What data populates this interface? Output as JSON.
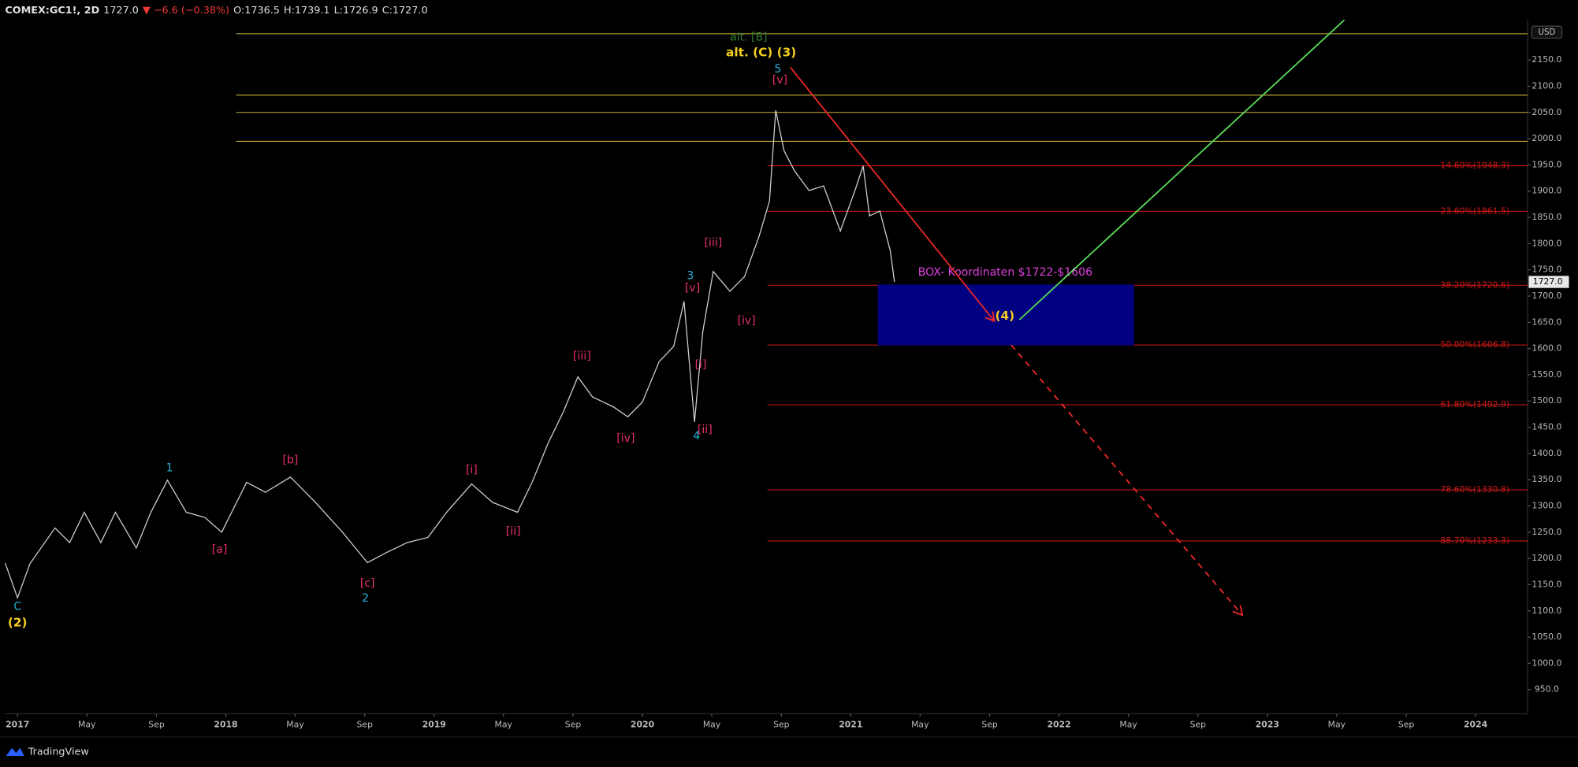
{
  "header": {
    "symbol": "COMEX:GC1!, 2D",
    "last": "1727.0",
    "change": "▼ −6.6 (−0.38%)",
    "ohlc": [
      "O:1736.5",
      "H:1739.1",
      "L:1726.9",
      "C:1727.0"
    ]
  },
  "footer": {
    "brand": "TradingView"
  },
  "chart_data": {
    "type": "line",
    "currency": "USD",
    "color": "#d0d0d0",
    "x": [
      2016.94,
      2017.0,
      2017.06,
      2017.18,
      2017.25,
      2017.32,
      2017.4,
      2017.47,
      2017.57,
      2017.64,
      2017.72,
      2017.81,
      2017.9,
      2017.98,
      2018.1,
      2018.19,
      2018.31,
      2018.43,
      2018.56,
      2018.68,
      2018.77,
      2018.87,
      2018.97,
      2019.06,
      2019.18,
      2019.28,
      2019.4,
      2019.47,
      2019.55,
      2019.62,
      2019.69,
      2019.76,
      2019.86,
      2019.93,
      2020.0,
      2020.08,
      2020.15,
      2020.2,
      2020.25,
      2020.29,
      2020.34,
      2020.42,
      2020.49,
      2020.56,
      2020.61,
      2020.64,
      2020.68,
      2020.73,
      2020.8,
      2020.87,
      2020.95,
      2021.02,
      2021.06,
      2021.09,
      2021.14,
      2021.19,
      2021.21
    ],
    "values": [
      1192,
      1125,
      1190,
      1258,
      1230,
      1288,
      1230,
      1288,
      1220,
      1288,
      1349,
      1288,
      1278,
      1250,
      1345,
      1326,
      1355,
      1307,
      1250,
      1192,
      1211,
      1230,
      1240,
      1288,
      1342,
      1307,
      1288,
      1345,
      1422,
      1479,
      1546,
      1508,
      1489,
      1470,
      1498,
      1575,
      1604,
      1690,
      1460,
      1633,
      1747,
      1709,
      1737,
      1814,
      1881,
      2054,
      1977,
      1939,
      1901,
      1910,
      1824,
      1901,
      1948,
      1853,
      1862,
      1786,
      1727
    ],
    "xlim": [
      2016.94,
      2024.25
    ],
    "ylim": [
      904,
      2226
    ],
    "xticks": [
      2017,
      {
        "value": 2017.333,
        "label": "May"
      },
      {
        "value": 2017.667,
        "label": "Sep"
      },
      2018,
      {
        "value": 2018.333,
        "label": "May"
      },
      {
        "value": 2018.667,
        "label": "Sep"
      },
      2019,
      {
        "value": 2019.333,
        "label": "May"
      },
      {
        "value": 2019.667,
        "label": "Sep"
      },
      2020,
      {
        "value": 2020.333,
        "label": "May"
      },
      {
        "value": 2020.667,
        "label": "Sep"
      },
      2021,
      {
        "value": 2021.333,
        "label": "May"
      },
      {
        "value": 2021.667,
        "label": "Sep"
      },
      2022,
      {
        "value": 2022.333,
        "label": "May"
      },
      {
        "value": 2022.667,
        "label": "Sep"
      },
      2023,
      {
        "value": 2023.333,
        "label": "May"
      },
      {
        "value": 2023.667,
        "label": "Sep"
      },
      2024
    ],
    "yticks": [
      {
        "value": 950,
        "label": "950.0"
      },
      {
        "value": 1000,
        "label": "1000.0"
      },
      {
        "value": 1050,
        "label": "1050.0"
      },
      {
        "value": 1100,
        "label": "1100.0"
      },
      {
        "value": 1150,
        "label": "1150.0"
      },
      {
        "value": 1200,
        "label": "1200.0"
      },
      {
        "value": 1250,
        "label": "1250.0"
      },
      {
        "value": 1300,
        "label": "1300.0"
      },
      {
        "value": 1350,
        "label": "1350.0"
      },
      {
        "value": 1400,
        "label": "1400.0"
      },
      {
        "value": 1450,
        "label": "1450.0"
      },
      {
        "value": 1500,
        "label": "1500.0"
      },
      {
        "value": 1550,
        "label": "1550.0"
      },
      {
        "value": 1600,
        "label": "1600.0"
      },
      {
        "value": 1650,
        "label": "1650.0"
      },
      {
        "value": 1700,
        "label": "1700.0"
      },
      {
        "value": 1750,
        "label": "1750.0"
      },
      {
        "value": 1800,
        "label": "1800.0"
      },
      {
        "value": 1850,
        "label": "1850.0"
      },
      {
        "value": 1900,
        "label": "1900.0"
      },
      {
        "value": 1950,
        "label": "1950.0"
      },
      {
        "value": 2000,
        "label": "2000.0"
      },
      {
        "value": 2050,
        "label": "2050.0"
      },
      {
        "value": 2100,
        "label": "2100.0"
      },
      {
        "value": 2150,
        "label": "2150.0"
      }
    ],
    "last_price": {
      "value": 1727.0,
      "label": "1727.0"
    },
    "hlines": {
      "color": "#c9b23a",
      "x_start": 2018.05,
      "values": [
        2200,
        2083,
        2050,
        1995
      ]
    },
    "fib_levels": {
      "color": "#d01818",
      "x_start": 2020.6,
      "levels": [
        {
          "value": 1948.3,
          "label": "14.60%(1948.3)"
        },
        {
          "value": 1861.5,
          "label": "23.60%(1861.5)"
        },
        {
          "value": 1720.6,
          "label": "38.20%(1720.6)"
        },
        {
          "value": 1606.8,
          "label": "50.00%(1606.8)"
        },
        {
          "value": 1492.9,
          "label": "61.80%(1492.9)"
        },
        {
          "value": 1330.8,
          "label": "78.60%(1330.8)"
        },
        {
          "value": 1233.3,
          "label": "88.70%(1233.3)"
        }
      ]
    },
    "box": {
      "x": [
        2021.13,
        2022.36
      ],
      "y": [
        1606,
        1722
      ],
      "color": "#000080",
      "label": "BOX- Koordinaten $1722-$1606",
      "label_color": "#e040e0"
    },
    "arrows": [
      {
        "x": [
          2020.71,
          2021.69
        ],
        "y": [
          2136,
          1652
        ],
        "color": "#f02828",
        "dashed": false,
        "head": true
      },
      {
        "x": [
          2021.77,
          2022.88
        ],
        "y": [
          1607,
          1092
        ],
        "color": "#f02828",
        "dashed": true,
        "head": true
      },
      {
        "x": [
          2021.81,
          2023.38
        ],
        "y": [
          1655,
          2230
        ],
        "color": "#5ae05a",
        "dashed": false,
        "head": false
      }
    ],
    "annotations": [
      {
        "text": "1",
        "x": 2017.73,
        "y": 1372,
        "color": "#26b0d8"
      },
      {
        "text": "[a]",
        "x": 2017.97,
        "y": 1217,
        "color": "#e8306a"
      },
      {
        "text": "[b]",
        "x": 2018.31,
        "y": 1387,
        "color": "#e8306a"
      },
      {
        "text": "[c]",
        "x": 2018.68,
        "y": 1152,
        "color": "#e8306a"
      },
      {
        "text": "2",
        "x": 2018.67,
        "y": 1124,
        "color": "#26b0d8"
      },
      {
        "text": "[i]",
        "x": 2019.18,
        "y": 1368,
        "color": "#e8306a"
      },
      {
        "text": "[ii]",
        "x": 2019.38,
        "y": 1251,
        "color": "#e8306a"
      },
      {
        "text": "[iii]",
        "x": 2019.71,
        "y": 1585,
        "color": "#e8306a"
      },
      {
        "text": "[iv]",
        "x": 2019.92,
        "y": 1428,
        "color": "#e8306a"
      },
      {
        "text": "3",
        "x": 2020.23,
        "y": 1738,
        "color": "#26b0d8"
      },
      {
        "text": "[v]",
        "x": 2020.24,
        "y": 1715,
        "color": "#e8306a"
      },
      {
        "text": "[i]",
        "x": 2020.28,
        "y": 1569,
        "color": "#e8306a"
      },
      {
        "text": "4",
        "x": 2020.26,
        "y": 1433,
        "color": "#26b0d8"
      },
      {
        "text": "[ii]",
        "x": 2020.3,
        "y": 1445,
        "color": "#e8306a"
      },
      {
        "text": "[iii]",
        "x": 2020.34,
        "y": 1801,
        "color": "#e8306a"
      },
      {
        "text": "[iv]",
        "x": 2020.5,
        "y": 1653,
        "color": "#e8306a"
      },
      {
        "text": "5",
        "x": 2020.65,
        "y": 2132,
        "color": "#26b0d8"
      },
      {
        "text": "[v]",
        "x": 2020.66,
        "y": 2111,
        "color": "#e8306a"
      },
      {
        "text": "alt. [B]",
        "x": 2020.51,
        "y": 2193,
        "color": "#2e7d32"
      },
      {
        "text": "alt. (C) (3)",
        "x": 2020.57,
        "y": 2164,
        "color": "#f5d020"
      },
      {
        "text": "C",
        "x": 2017.0,
        "y": 1108,
        "color": "#26b0d8"
      },
      {
        "text": "(2)",
        "x": 2017.0,
        "y": 1077,
        "color": "#f5d020"
      },
      {
        "text": "(4)",
        "x": 2021.74,
        "y": 1662,
        "color": "#f5d020"
      }
    ]
  }
}
